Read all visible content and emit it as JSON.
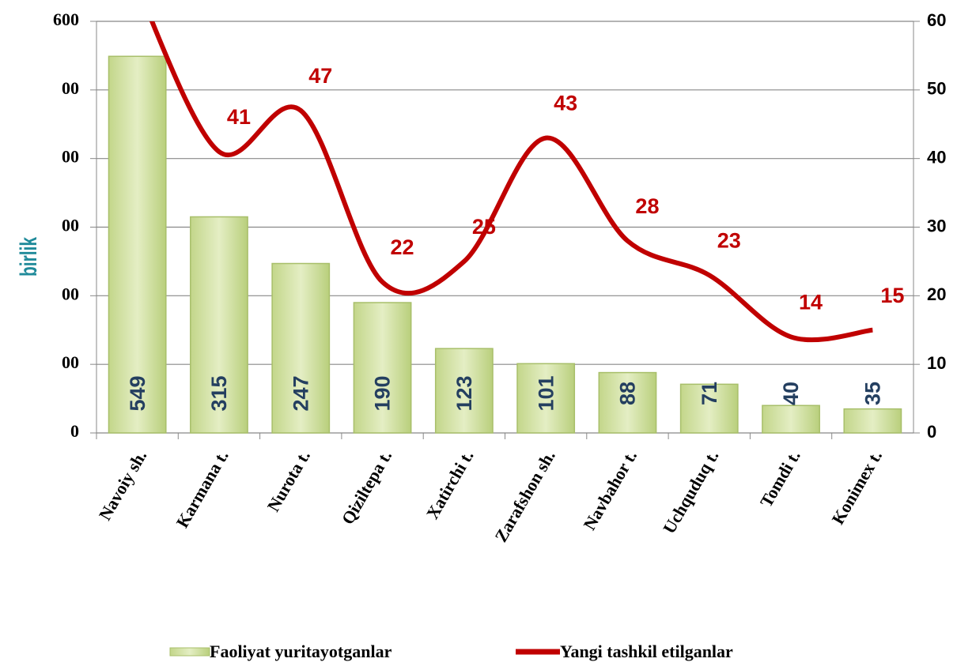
{
  "chart_data": {
    "type": "bar",
    "y_label": "birlik",
    "categories": [
      "Navoiy sh.",
      "Karmana t.",
      "Nurota t.",
      "Qiziltepa t.",
      "Xatirchi t.",
      "Zarafshon sh.",
      "Navbahor t.",
      "Uchquduq t.",
      "Tomdi t.",
      "Konimex t."
    ],
    "series": [
      {
        "name": "Faoliyat yuritayotganlar",
        "type": "bar",
        "color": "#d4e3a0",
        "values": [
          549,
          315,
          247,
          190,
          123,
          101,
          88,
          71,
          40,
          35
        ]
      },
      {
        "name": "Yangi tashkil etilganlar",
        "type": "line",
        "axis": "y2",
        "color": "#c00000",
        "values": [
          65,
          41,
          47,
          22,
          25,
          43,
          28,
          23,
          14,
          15
        ]
      }
    ],
    "ylim": [
      0,
      600
    ],
    "yticks": [
      0,
      {
        "value": 100,
        "label": "00"
      },
      {
        "value": 200,
        "label": "00"
      },
      {
        "value": 300,
        "label": "00"
      },
      {
        "value": 400,
        "label": "00"
      },
      {
        "value": 500,
        "label": "00"
      },
      600
    ],
    "y2lim": [
      0,
      60
    ],
    "y2ticks": [
      0,
      10,
      20,
      30,
      40,
      50,
      60
    ],
    "grid": true,
    "legend": "bottom"
  }
}
